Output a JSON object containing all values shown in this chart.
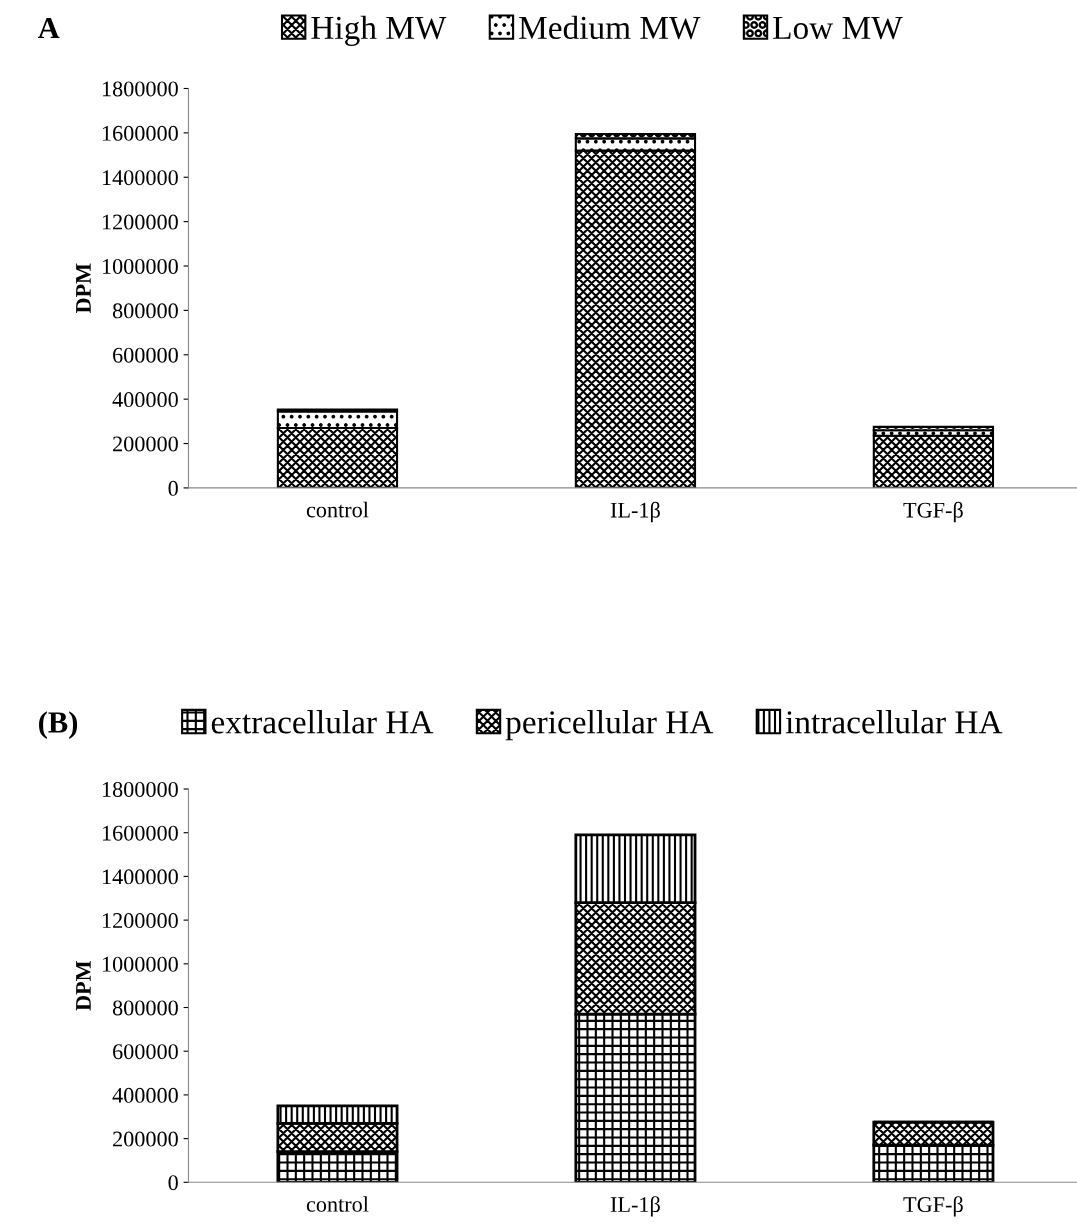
{
  "chart_data": [
    {
      "type": "bar",
      "title": "A",
      "ylabel": "DPM",
      "categories": [
        "control",
        "IL-1β",
        "TGF-β"
      ],
      "stacked": true,
      "legend": "top",
      "grid": false,
      "ylim": [
        0,
        1800000
      ],
      "yticks": [
        0,
        200000,
        400000,
        600000,
        800000,
        1000000,
        1200000,
        1400000,
        1600000,
        1800000
      ],
      "series": [
        {
          "name": "High MW",
          "color": "#000000",
          "values": [
            270000,
            1520000,
            235000
          ]
        },
        {
          "name": "Medium MW",
          "color": "#000000",
          "values": [
            75000,
            55000,
            25000
          ]
        },
        {
          "name": "Low MW",
          "color": "#000000",
          "values": [
            8000,
            20000,
            15000
          ]
        }
      ]
    },
    {
      "type": "bar",
      "title": "(B)",
      "ylabel": "DPM",
      "categories": [
        "control",
        "IL-1β",
        "TGF-β"
      ],
      "stacked": true,
      "legend": "top",
      "grid": false,
      "ylim": [
        0,
        1800000
      ],
      "yticks": [
        0,
        200000,
        400000,
        600000,
        800000,
        1000000,
        1200000,
        1400000,
        1600000,
        1800000
      ],
      "series": [
        {
          "name": "extracellular HA",
          "color": "#000000",
          "values": [
            140000,
            770000,
            170000
          ]
        },
        {
          "name": "pericellular HA",
          "color": "#000000",
          "values": [
            130000,
            510000,
            105000
          ]
        },
        {
          "name": "intracellular HA",
          "color": "#000000",
          "values": [
            80000,
            310000,
            0
          ]
        }
      ]
    }
  ]
}
